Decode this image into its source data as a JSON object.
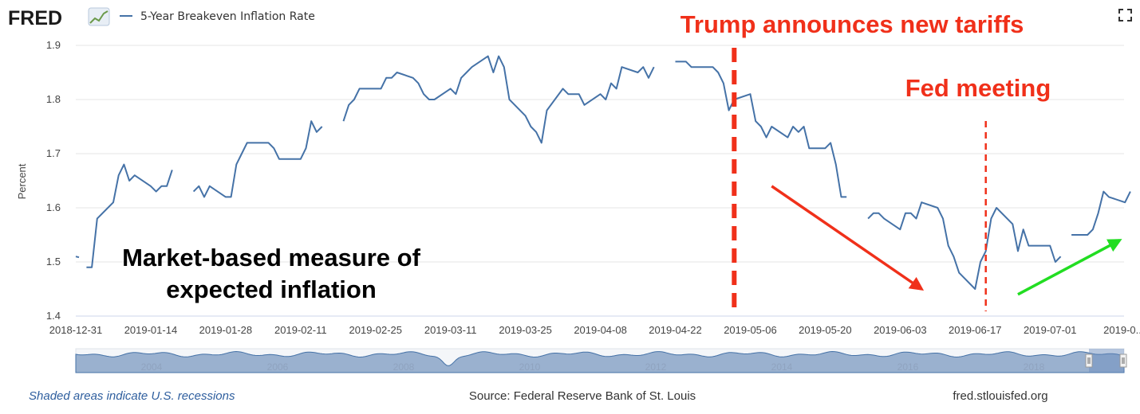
{
  "header": {
    "logo": "FRED",
    "legend_label": "5-Year Breakeven Inflation Rate",
    "expand_icon": "expand-icon"
  },
  "colors": {
    "series": "#4572a7",
    "annotation_red": "#f0301a",
    "annotation_green": "#22dd22",
    "navigator_fill": "#8aa4c8"
  },
  "annotations": {
    "trump": "Trump announces new tariffs",
    "fed": "Fed meeting",
    "market_line1": "Market-based measure of",
    "market_line2": "expected inflation"
  },
  "navigator": {
    "years": [
      "2004",
      "2006",
      "2008",
      "2010",
      "2012",
      "2014",
      "2016",
      "2018"
    ]
  },
  "footer": {
    "recessions": "Shaded areas indicate U.S. recessions",
    "source": "Source: Federal Reserve Bank of St. Louis",
    "site": "fred.stlouisfed.org"
  },
  "chart_data": {
    "type": "line",
    "title": "",
    "xlabel": "",
    "ylabel": "Percent",
    "ylim": [
      1.4,
      1.9
    ],
    "yticks": [
      "1.4",
      "1.5",
      "1.6",
      "1.7",
      "1.8",
      "1.9"
    ],
    "xlim": [
      "2018-12-31",
      "2019-07-12"
    ],
    "xtick_labels": [
      "2018-12-31",
      "2019-01-14",
      "2019-01-28",
      "2019-02-11",
      "2019-02-25",
      "2019-03-11",
      "2019-03-25",
      "2019-04-08",
      "2019-04-22",
      "2019-05-06",
      "2019-05-20",
      "2019-06-03",
      "2019-06-17",
      "2019-07-01",
      "2019-0..."
    ],
    "grid": true,
    "legend": "top-left",
    "series": [
      {
        "name": "5-Year Breakeven Inflation Rate",
        "points": [
          [
            "2018-12-31",
            1.51
          ],
          [
            null,
            null
          ],
          [
            "2019-01-02",
            1.49
          ],
          [
            "2019-01-03",
            1.49
          ],
          [
            "2019-01-04",
            1.58
          ],
          [
            "2019-01-07",
            1.61
          ],
          [
            "2019-01-08",
            1.66
          ],
          [
            "2019-01-09",
            1.68
          ],
          [
            "2019-01-10",
            1.65
          ],
          [
            "2019-01-11",
            1.66
          ],
          [
            "2019-01-14",
            1.64
          ],
          [
            "2019-01-15",
            1.63
          ],
          [
            "2019-01-16",
            1.64
          ],
          [
            "2019-01-17",
            1.64
          ],
          [
            "2019-01-18",
            1.67
          ],
          [
            null,
            null
          ],
          [
            "2019-01-22",
            1.63
          ],
          [
            "2019-01-23",
            1.64
          ],
          [
            "2019-01-24",
            1.62
          ],
          [
            "2019-01-25",
            1.64
          ],
          [
            "2019-01-28",
            1.62
          ],
          [
            "2019-01-29",
            1.62
          ],
          [
            "2019-01-30",
            1.68
          ],
          [
            "2019-01-31",
            1.7
          ],
          [
            "2019-02-01",
            1.72
          ],
          [
            "2019-02-04",
            1.72
          ],
          [
            "2019-02-05",
            1.72
          ],
          [
            "2019-02-06",
            1.71
          ],
          [
            "2019-02-07",
            1.69
          ],
          [
            "2019-02-08",
            1.69
          ],
          [
            "2019-02-11",
            1.69
          ],
          [
            "2019-02-12",
            1.71
          ],
          [
            "2019-02-13",
            1.76
          ],
          [
            "2019-02-14",
            1.74
          ],
          [
            "2019-02-15",
            1.75
          ],
          [
            null,
            null
          ],
          [
            "2019-02-19",
            1.76
          ],
          [
            "2019-02-20",
            1.79
          ],
          [
            "2019-02-21",
            1.8
          ],
          [
            "2019-02-22",
            1.82
          ],
          [
            "2019-02-25",
            1.82
          ],
          [
            "2019-02-26",
            1.82
          ],
          [
            "2019-02-27",
            1.84
          ],
          [
            "2019-02-28",
            1.84
          ],
          [
            "2019-03-01",
            1.85
          ],
          [
            "2019-03-04",
            1.84
          ],
          [
            "2019-03-05",
            1.83
          ],
          [
            "2019-03-06",
            1.81
          ],
          [
            "2019-03-07",
            1.8
          ],
          [
            "2019-03-08",
            1.8
          ],
          [
            "2019-03-11",
            1.82
          ],
          [
            "2019-03-12",
            1.81
          ],
          [
            "2019-03-13",
            1.84
          ],
          [
            "2019-03-14",
            1.85
          ],
          [
            "2019-03-15",
            1.86
          ],
          [
            "2019-03-18",
            1.88
          ],
          [
            "2019-03-19",
            1.85
          ],
          [
            "2019-03-20",
            1.88
          ],
          [
            "2019-03-21",
            1.86
          ],
          [
            "2019-03-22",
            1.8
          ],
          [
            "2019-03-25",
            1.77
          ],
          [
            "2019-03-26",
            1.75
          ],
          [
            "2019-03-27",
            1.74
          ],
          [
            "2019-03-28",
            1.72
          ],
          [
            "2019-03-29",
            1.78
          ],
          [
            "2019-04-01",
            1.82
          ],
          [
            "2019-04-02",
            1.81
          ],
          [
            "2019-04-03",
            1.81
          ],
          [
            "2019-04-04",
            1.81
          ],
          [
            "2019-04-05",
            1.79
          ],
          [
            "2019-04-08",
            1.81
          ],
          [
            "2019-04-09",
            1.8
          ],
          [
            "2019-04-10",
            1.83
          ],
          [
            "2019-04-11",
            1.82
          ],
          [
            "2019-04-12",
            1.86
          ],
          [
            "2019-04-15",
            1.85
          ],
          [
            "2019-04-16",
            1.86
          ],
          [
            "2019-04-17",
            1.84
          ],
          [
            "2019-04-18",
            1.86
          ],
          [
            null,
            null
          ],
          [
            "2019-04-22",
            1.87
          ],
          [
            "2019-04-23",
            1.87
          ],
          [
            "2019-04-24",
            1.87
          ],
          [
            "2019-04-25",
            1.86
          ],
          [
            "2019-04-26",
            1.86
          ],
          [
            "2019-04-29",
            1.86
          ],
          [
            "2019-04-30",
            1.85
          ],
          [
            "2019-05-01",
            1.83
          ],
          [
            "2019-05-02",
            1.78
          ],
          [
            "2019-05-03",
            1.8
          ],
          [
            "2019-05-06",
            1.81
          ],
          [
            "2019-05-07",
            1.76
          ],
          [
            "2019-05-08",
            1.75
          ],
          [
            "2019-05-09",
            1.73
          ],
          [
            "2019-05-10",
            1.75
          ],
          [
            "2019-05-13",
            1.73
          ],
          [
            "2019-05-14",
            1.75
          ],
          [
            "2019-05-15",
            1.74
          ],
          [
            "2019-05-16",
            1.75
          ],
          [
            "2019-05-17",
            1.71
          ],
          [
            "2019-05-20",
            1.71
          ],
          [
            "2019-05-21",
            1.72
          ],
          [
            "2019-05-22",
            1.68
          ],
          [
            "2019-05-23",
            1.62
          ],
          [
            "2019-05-24",
            1.62
          ],
          [
            null,
            null
          ],
          [
            "2019-05-28",
            1.58
          ],
          [
            "2019-05-29",
            1.59
          ],
          [
            "2019-05-30",
            1.59
          ],
          [
            "2019-05-31",
            1.58
          ],
          [
            "2019-06-03",
            1.56
          ],
          [
            "2019-06-04",
            1.59
          ],
          [
            "2019-06-05",
            1.59
          ],
          [
            "2019-06-06",
            1.58
          ],
          [
            "2019-06-07",
            1.61
          ],
          [
            "2019-06-10",
            1.6
          ],
          [
            "2019-06-11",
            1.58
          ],
          [
            "2019-06-12",
            1.53
          ],
          [
            "2019-06-13",
            1.51
          ],
          [
            "2019-06-14",
            1.48
          ],
          [
            "2019-06-17",
            1.45
          ],
          [
            "2019-06-18",
            1.5
          ],
          [
            "2019-06-19",
            1.52
          ],
          [
            "2019-06-20",
            1.58
          ],
          [
            "2019-06-21",
            1.6
          ],
          [
            "2019-06-24",
            1.57
          ],
          [
            "2019-06-25",
            1.52
          ],
          [
            "2019-06-26",
            1.56
          ],
          [
            "2019-06-27",
            1.53
          ],
          [
            "2019-06-28",
            1.53
          ],
          [
            "2019-07-01",
            1.53
          ],
          [
            "2019-07-02",
            1.5
          ],
          [
            "2019-07-03",
            1.51
          ],
          [
            null,
            null
          ],
          [
            "2019-07-05",
            1.55
          ],
          [
            "2019-07-08",
            1.55
          ],
          [
            "2019-07-09",
            1.56
          ],
          [
            "2019-07-10",
            1.59
          ],
          [
            "2019-07-11",
            1.63
          ],
          [
            "2019-07-12",
            1.62
          ],
          [
            "2019-07-15",
            1.61
          ],
          [
            "2019-07-16",
            1.63
          ]
        ]
      }
    ],
    "vlines": [
      {
        "date": "2019-05-03",
        "label": "Trump announces new tariffs",
        "style": "dashed-thick"
      },
      {
        "date": "2019-06-19",
        "label": "Fed meeting",
        "style": "dashed-thin"
      }
    ],
    "arrows": [
      {
        "from": [
          "2019-05-10",
          1.64
        ],
        "to": [
          "2019-06-07",
          1.45
        ],
        "color": "red"
      },
      {
        "from": [
          "2019-06-25",
          1.44
        ],
        "to": [
          "2019-07-14",
          1.54
        ],
        "color": "green"
      }
    ]
  }
}
